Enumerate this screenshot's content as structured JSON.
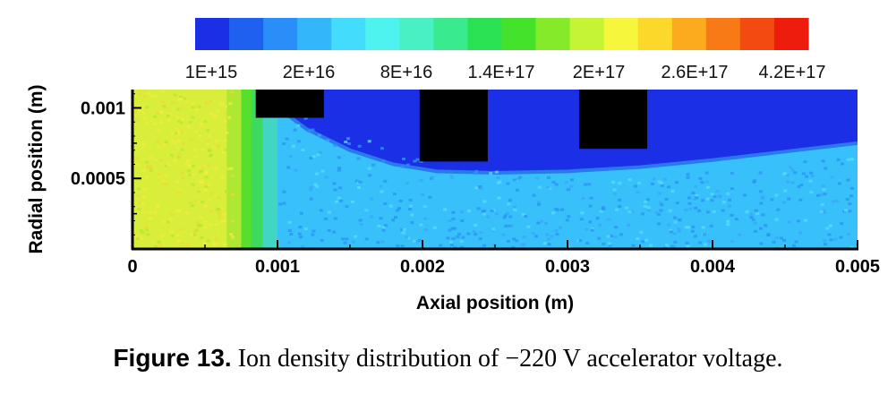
{
  "chart_data": {
    "type": "heatmap",
    "title": "",
    "xlabel": "Axial position (m)",
    "ylabel": "Radial position (m)",
    "xlim": [
      0,
      0.005
    ],
    "ylim": [
      0,
      0.00113
    ],
    "x_ticks": [
      "0",
      "0.001",
      "0.002",
      "0.003",
      "0.004",
      "0.005"
    ],
    "x_tick_values": [
      0,
      0.001,
      0.002,
      0.003,
      0.004,
      0.005
    ],
    "y_ticks": [
      "0.001",
      "0.0005"
    ],
    "y_tick_values": [
      0.001,
      0.0005
    ],
    "colorbar": {
      "labels": [
        "1E+15",
        "2E+16",
        "8E+16",
        "1.4E+17",
        "2E+17",
        "2.6E+17",
        "4.2E+17"
      ],
      "colors": [
        "#1a2fe6",
        "#2060f0",
        "#2a8ef8",
        "#34b6fb",
        "#44dcfd",
        "#4ef2ee",
        "#48f0c4",
        "#3aea8e",
        "#2ae252",
        "#44e22a",
        "#84ea2a",
        "#c4f434",
        "#f6f63c",
        "#fcd82a",
        "#fcaa1e",
        "#f87a16",
        "#f24a10",
        "#ee1c0c"
      ]
    },
    "regions": [
      {
        "name": "high-density-plasma",
        "x": [
          0,
          0.00075
        ],
        "y": [
          0,
          0.00113
        ],
        "level": "2E+17",
        "color": "#d8ee3a"
      },
      {
        "name": "transition-band",
        "x": [
          0.00075,
          0.0009
        ],
        "y": [
          0,
          0.00113
        ],
        "level": "1.4E+17",
        "color": "#44e22a"
      },
      {
        "name": "ion-beam",
        "x": [
          0.0009,
          0.005
        ],
        "y": [
          0,
          0.00055
        ],
        "level": "2E+16",
        "color": "#34b6fb"
      },
      {
        "name": "low-density-region",
        "x": [
          0.001,
          0.005
        ],
        "y": [
          0.00055,
          0.00113
        ],
        "level": "1E+15",
        "color": "#1a2fe6"
      }
    ],
    "beam_boundary": {
      "x": [
        0.0009,
        0.0012,
        0.0015,
        0.0018,
        0.0021,
        0.0025,
        0.003,
        0.0035,
        0.004,
        0.0045,
        0.005
      ],
      "y": [
        0.00108,
        0.00085,
        0.0007,
        0.0006,
        0.00055,
        0.00054,
        0.00055,
        0.00058,
        0.00063,
        0.00069,
        0.00075
      ]
    },
    "electrodes": [
      {
        "name": "screen-grid",
        "x": [
          0.00085,
          0.00132
        ],
        "y": [
          0.00093,
          0.00113
        ]
      },
      {
        "name": "accelerator-grid",
        "x": [
          0.00198,
          0.00245
        ],
        "y": [
          0.00062,
          0.00113
        ]
      },
      {
        "name": "decelerator-grid",
        "x": [
          0.00308,
          0.00355
        ],
        "y": [
          0.00071,
          0.00113
        ]
      }
    ]
  },
  "caption": {
    "label": "Figure 13.",
    "text": " Ion density distribution of −220 V accelerator voltage."
  }
}
